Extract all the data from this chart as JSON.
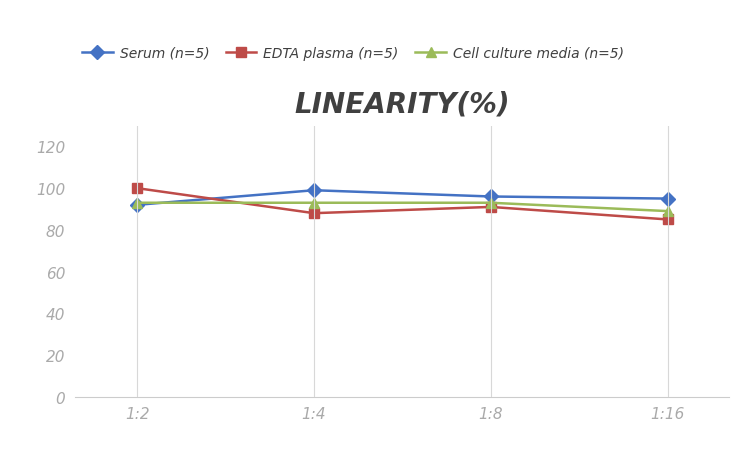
{
  "title": "LINEARITY(%)",
  "x_tick_labels": [
    "1:2",
    "1:4",
    "1:8",
    "1:16"
  ],
  "series": [
    {
      "label": "Serum (n=5)",
      "values": [
        92,
        99,
        96,
        95
      ],
      "color": "#4472C4",
      "marker": "D",
      "markersize": 7,
      "linewidth": 1.8
    },
    {
      "label": "EDTA plasma (n=5)",
      "values": [
        100,
        88,
        91,
        85
      ],
      "color": "#BE4B48",
      "marker": "s",
      "markersize": 7,
      "linewidth": 1.8
    },
    {
      "label": "Cell culture media (n=5)",
      "values": [
        93,
        93,
        93,
        89
      ],
      "color": "#9BBB59",
      "marker": "^",
      "markersize": 7,
      "linewidth": 1.8
    }
  ],
  "ylim": [
    0,
    130
  ],
  "yticks": [
    0,
    20,
    40,
    60,
    80,
    100,
    120
  ],
  "background_color": "#FFFFFF",
  "grid_color": "#D8D8D8",
  "title_fontsize": 20,
  "legend_fontsize": 10,
  "tick_fontsize": 11,
  "tick_color": "#AAAAAA"
}
